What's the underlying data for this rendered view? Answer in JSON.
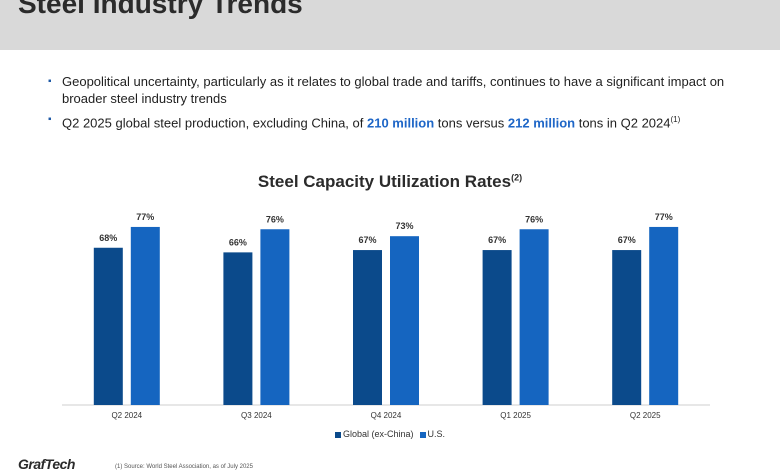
{
  "page": {
    "title": "Steel Industry Trends",
    "footnote": "(1)    Source: World Steel Association, as of July 2025",
    "logo_text": "GrafTech"
  },
  "bullets": [
    {
      "marker": "▪",
      "parts": [
        {
          "text": "Geopolitical uncertainty, particularly as it relates to global trade and tariffs, continues to have a significant impact on broader steel industry trends",
          "highlight": false
        }
      ]
    },
    {
      "marker": "▪",
      "parts": [
        {
          "text": "Q2 2025 global steel production, excluding China, of ",
          "highlight": false
        },
        {
          "text": "210 million",
          "highlight": true
        },
        {
          "text": " tons versus ",
          "highlight": false
        },
        {
          "text": "212 million",
          "highlight": true
        },
        {
          "text": " tons in Q2 2024",
          "highlight": false
        }
      ],
      "superscript": "(1)"
    }
  ],
  "chart_data": {
    "type": "bar",
    "title": "Steel Capacity Utilization Rates",
    "title_superscript": "(2)",
    "categories": [
      "Q2 2024",
      "Q3 2024",
      "Q4 2024",
      "Q1 2025",
      "Q2 2025"
    ],
    "series": [
      {
        "name": "Global (ex-China)",
        "values": [
          68,
          66,
          67,
          67,
          67
        ],
        "color": "#0b4a8b"
      },
      {
        "name": "U.S.",
        "values": [
          77,
          76,
          73,
          76,
          77
        ],
        "color": "#1565c0"
      }
    ],
    "value_suffix": "%",
    "ylim": [
      0,
      80
    ],
    "grid": false,
    "legend_position": "bottom"
  },
  "colors": {
    "header_band": "#d9d9d9",
    "highlight_text": "#1e66c7"
  }
}
